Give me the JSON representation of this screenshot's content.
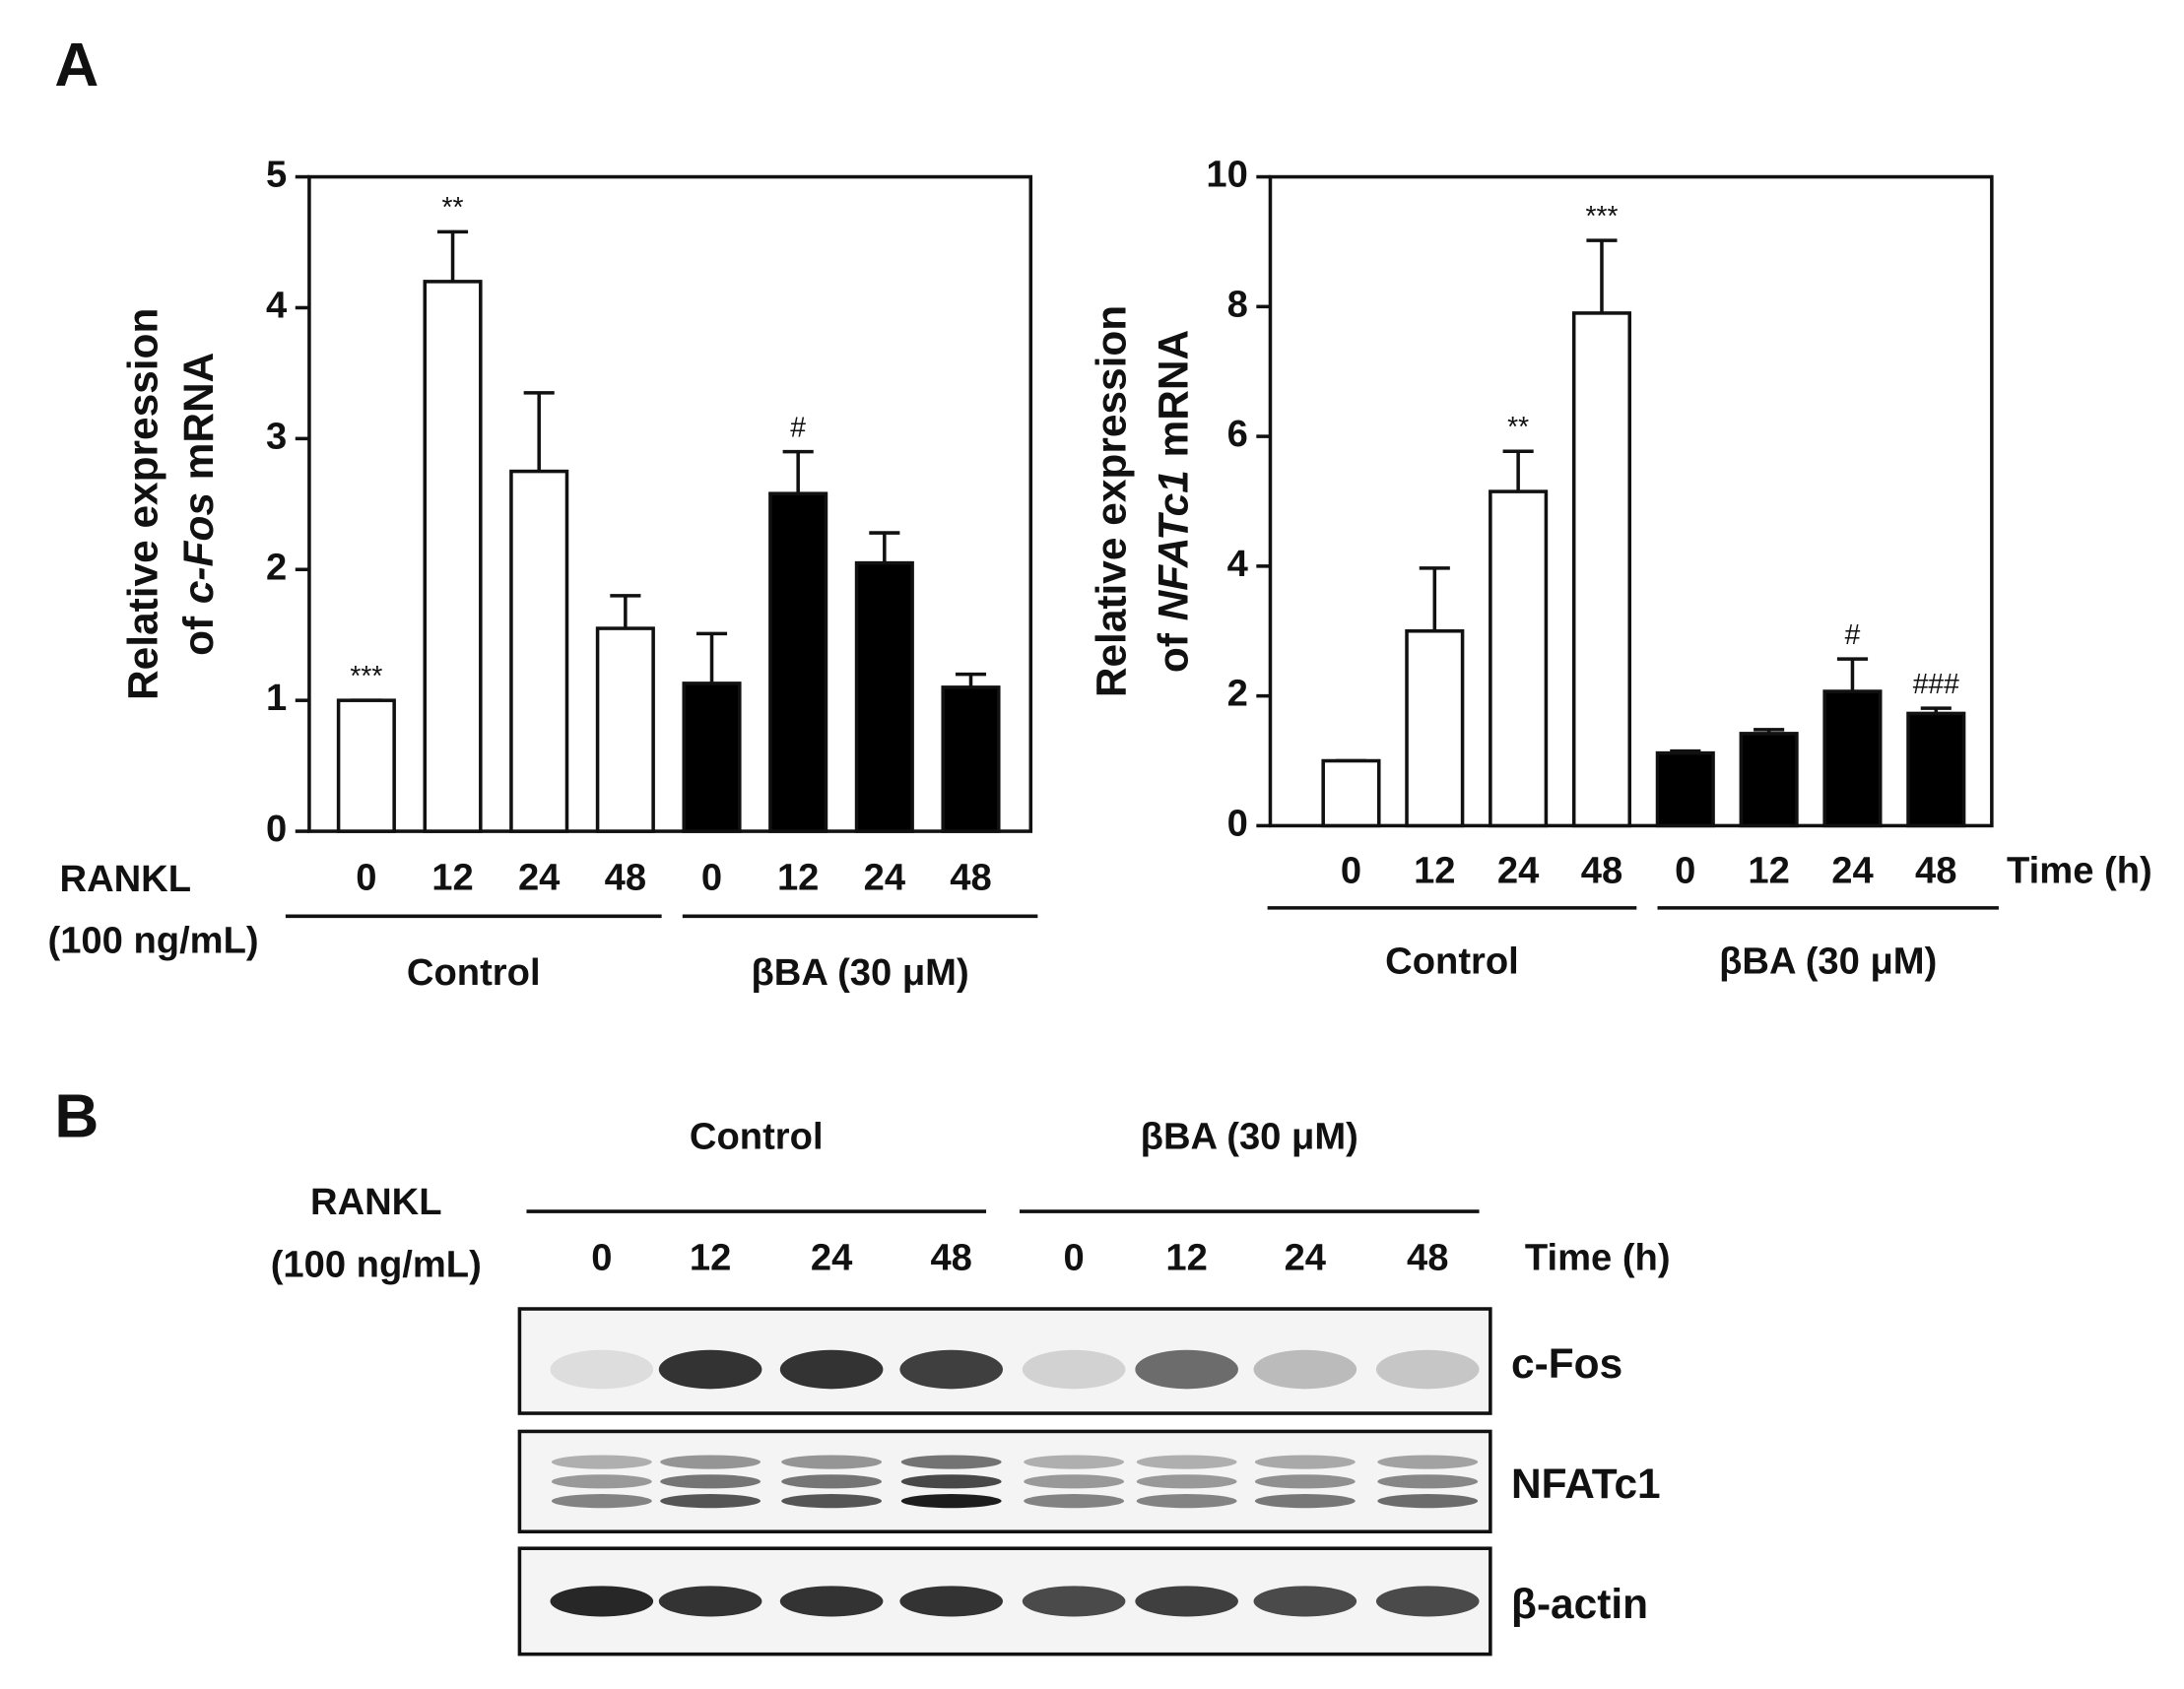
{
  "panel_labels": [
    "A",
    "B"
  ],
  "chart_data": [
    {
      "type": "bar",
      "ylabel": [
        "Relative expression",
        "of",
        "c-Fos",
        "mRNA"
      ],
      "row_label": [
        "RANKL",
        "(100 ng/mL)"
      ],
      "categories": [
        "0",
        "12",
        "24",
        "48"
      ],
      "series": [
        {
          "name": "Control",
          "color": "#ffffff",
          "values": [
            1.0,
            4.2,
            2.75,
            1.55
          ],
          "errors": [
            0,
            0.38,
            0.6,
            0.25
          ],
          "annotations": [
            "***",
            "**",
            null,
            null
          ]
        },
        {
          "name": "βBA (30 μM)",
          "color": "#000000",
          "values": [
            1.13,
            2.58,
            2.05,
            1.1
          ],
          "errors": [
            0.38,
            0.32,
            0.23,
            0.1
          ],
          "annotations": [
            null,
            "#",
            null,
            null
          ]
        }
      ],
      "ylim": [
        0,
        5
      ],
      "yticks": [
        0,
        1,
        2,
        3,
        4,
        5
      ]
    },
    {
      "type": "bar",
      "ylabel": [
        "Relative expression",
        "of",
        "NFATc1",
        "mRNA"
      ],
      "x_unit_label": "Time (h)",
      "categories": [
        "0",
        "12",
        "24",
        "48"
      ],
      "series": [
        {
          "name": "Control",
          "color": "#ffffff",
          "values": [
            1.0,
            3.0,
            5.15,
            7.9
          ],
          "errors": [
            0,
            0.97,
            0.62,
            1.12
          ],
          "annotations": [
            null,
            null,
            "**",
            "***"
          ]
        },
        {
          "name": "βBA (30 μM)",
          "color": "#000000",
          "values": [
            1.12,
            1.42,
            2.07,
            1.73
          ],
          "errors": [
            0.03,
            0.06,
            0.5,
            0.08
          ],
          "annotations": [
            null,
            null,
            "#",
            "###"
          ]
        }
      ],
      "ylim": [
        0,
        10
      ],
      "yticks": [
        0,
        2,
        4,
        6,
        8,
        10
      ]
    }
  ],
  "blot": {
    "groups": [
      "Control",
      "βBA (30 μM)"
    ],
    "lanes": [
      "0",
      "12",
      "24",
      "48"
    ],
    "row_label": [
      "RANKL",
      "(100 ng/mL)"
    ],
    "time_label": "Time (h)",
    "proteins": [
      "c-Fos",
      "NFATc1",
      "β-actin"
    ]
  }
}
